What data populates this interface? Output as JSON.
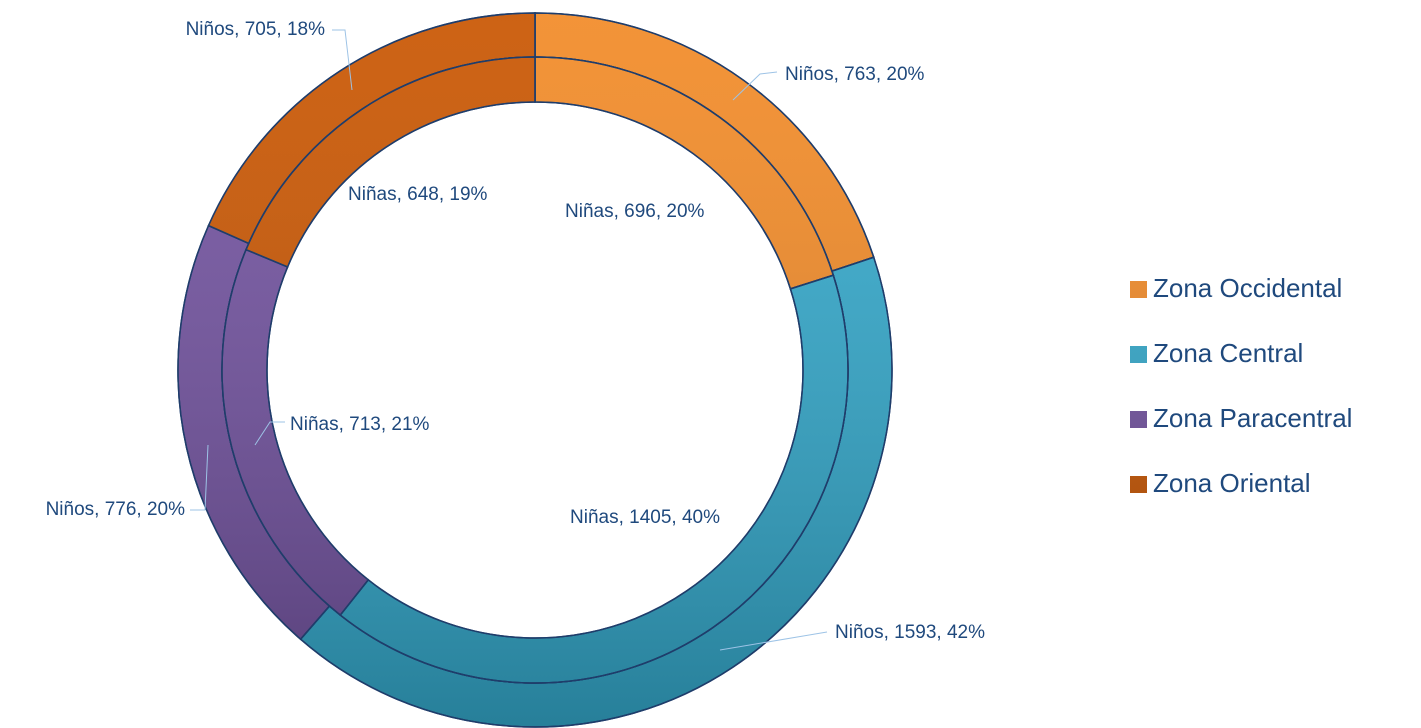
{
  "chart_data": {
    "type": "doughnut",
    "categories": [
      "Zona Occidental",
      "Zona Central",
      "Zona Paracentral",
      "Zona Oriental"
    ],
    "colors": [
      "#f28a26",
      "#33a9cc",
      "#7252a0",
      "#c95500"
    ],
    "series": [
      {
        "values": [
          763,
          1593,
          776,
          705
        ],
        "value_labels": [
          "Niños, 763, 20%",
          "Niños, 1593, 42%",
          "Niños, 776, 20%",
          "Niños, 705, 18%"
        ]
      },
      {
        "values": [
          696,
          1405,
          713,
          648
        ],
        "value_labels": [
          "Niñas, 696, 20%",
          "Niñas, 1405, 40%",
          "Niñas, 713, 21%",
          "Niñas, 648, 19%"
        ]
      }
    ],
    "legend": "right"
  }
}
